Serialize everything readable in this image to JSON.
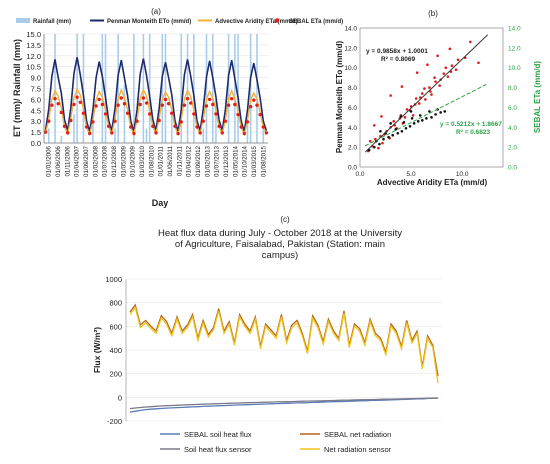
{
  "chart_data": [
    {
      "panel": "(a)",
      "type": "line",
      "legend": [
        "Rainfall (mm)",
        "Penman Monteith ETo (mm/d)",
        "Advective Aridity ETa (mm/d)",
        "SEBAL ETa (mm/d)"
      ],
      "xlabel": "Day",
      "ylabel": "ET (mm)/ Rainfall (mm)",
      "ylim": [
        0,
        15
      ],
      "yticks": [
        "0.0",
        "1.5",
        "3.0",
        "4.5",
        "6.0",
        "7.5",
        "9.0",
        "10.5",
        "12.0",
        "13.5",
        "15.0"
      ],
      "xticks": [
        "01/01/2006",
        "01/06/2006",
        "01/11/2006",
        "01/04/2007",
        "01/09/2007",
        "01/02/2008",
        "01/07/2008",
        "01/12/2008",
        "01/05/2009",
        "01/10/2009",
        "01/03/2010",
        "01/08/2010",
        "01/01/2011",
        "01/06/2011",
        "01/11/2011",
        "01/04/2012",
        "01/09/2012",
        "01/02/2013",
        "01/07/2013",
        "01/12/2013",
        "01/05/2014",
        "01/10/2014",
        "01/03/2015",
        "01/08/2015"
      ],
      "series": [
        {
          "name": "Penman Monteith ETo (mm/d)",
          "color": "#1f2a6b",
          "values": [
            1.8,
            4.6,
            9.2,
            11.5,
            9.0,
            6.8,
            3.2,
            1.7,
            4.8,
            9.6,
            11.8,
            9.4,
            6.6,
            3.0,
            1.6,
            4.5,
            9.0,
            11.2,
            9.1,
            6.3,
            3.1,
            1.7,
            4.7,
            9.3,
            11.4,
            8.9,
            6.5,
            3.0,
            1.6,
            4.6,
            9.5,
            11.6,
            9.3,
            6.4,
            3.2,
            1.7,
            4.8,
            9.2,
            11.1,
            9.0,
            6.6,
            3.1,
            1.6,
            4.5,
            9.4,
            11.5,
            9.2,
            6.5,
            3.0,
            1.7,
            4.7,
            9.1,
            11.3,
            9.0,
            6.4,
            3.1,
            1.7,
            4.6,
            9.3,
            11.4,
            8.8,
            6.3,
            3.0,
            1.6,
            4.5,
            9.0,
            11.0,
            8.7,
            6.2,
            3.0,
            1.7
          ]
        },
        {
          "name": "Advective Aridity ETa (mm/d)",
          "color": "#f2b13a",
          "values": [
            1.4,
            3.2,
            6.0,
            7.2,
            6.4,
            4.8,
            2.2,
            1.3,
            3.4,
            6.2,
            7.4,
            6.6,
            4.6,
            2.1,
            1.2,
            3.1,
            5.9,
            7.1,
            6.3,
            4.5,
            2.2,
            1.3,
            3.3,
            6.1,
            7.3,
            6.2,
            4.6,
            2.1,
            1.2,
            3.2,
            6.2,
            7.3,
            6.5,
            4.5,
            2.2,
            1.3,
            3.4,
            6.0,
            7.0,
            6.3,
            4.6,
            2.2,
            1.2,
            3.1,
            6.1,
            7.2,
            6.4,
            4.5,
            2.1,
            1.3,
            3.3,
            6.0,
            7.1,
            6.2,
            4.5,
            2.2,
            1.3,
            3.2,
            6.1,
            7.2,
            6.1,
            4.4,
            2.1,
            1.2,
            3.1,
            5.9,
            6.9,
            6.0,
            4.3,
            2.1,
            1.3
          ]
        },
        {
          "name": "SEBAL ETa (mm/d)",
          "color": "#e0201b",
          "values": [
            1.5,
            3.0,
            5.2,
            6.1,
            5.4,
            4.2,
            2.3,
            1.4,
            3.1,
            5.3,
            6.3,
            5.6,
            4.1,
            2.2,
            1.3,
            2.9,
            5.1,
            6.0,
            5.3,
            4.0,
            2.3,
            1.4,
            3.0,
            5.2,
            6.2,
            5.4,
            4.1,
            2.2,
            1.3,
            3.0,
            5.3,
            6.2,
            5.5,
            4.0,
            2.3,
            1.4,
            3.1,
            5.2,
            6.0,
            5.4,
            4.1,
            2.3,
            1.3,
            2.9,
            5.2,
            6.1,
            5.5,
            4.0,
            2.2,
            1.4,
            3.0,
            5.1,
            6.0,
            5.3,
            4.0,
            2.3,
            1.4,
            3.0,
            5.2,
            6.1,
            5.3,
            3.9,
            2.2,
            1.3,
            2.9,
            5.0,
            5.9,
            5.2,
            3.9,
            2.2,
            1.4
          ]
        },
        {
          "name": "Rainfall (mm)",
          "color": "#a9cce9",
          "values": [
            0,
            2,
            0,
            15,
            0,
            1,
            0,
            0,
            0,
            4,
            15,
            0,
            15,
            0,
            0,
            3,
            0,
            0,
            15,
            15,
            0,
            0,
            2,
            15,
            0,
            8,
            0,
            0,
            15,
            0,
            0,
            15,
            2,
            15,
            0,
            0,
            0,
            15,
            15,
            0,
            4,
            0,
            0,
            15,
            0,
            15,
            0,
            15,
            0,
            0,
            2,
            15,
            0,
            15,
            6,
            0,
            0,
            0,
            15,
            0,
            15,
            15,
            0,
            0,
            3,
            15,
            0,
            15,
            0,
            2,
            0
          ]
        }
      ]
    },
    {
      "panel": "(b)",
      "type": "scatter",
      "xlabel": "Advective Aridity ETa (mm/d)",
      "ylabel": "Penman Monteith ETo (mm/d)",
      "y2label": "SEBAL ETa (mm/d)",
      "xlim": [
        0,
        14
      ],
      "ylim": [
        0,
        14
      ],
      "xticks": [
        "0.0",
        "5.0",
        "10.0"
      ],
      "yticks": [
        "0.0",
        "2.0",
        "4.0",
        "6.0",
        "8.0",
        "10.0",
        "12.0",
        "14.0"
      ],
      "y2ticks": [
        "0.0",
        "2.0",
        "4.0",
        "6.0",
        "8.0",
        "10.0",
        "12.0",
        "14.0"
      ],
      "equations": {
        "primary": "y = 0.9858x + 1.0001",
        "primary_r2": "R² = 0.8069",
        "secondary": "y = 0.5212x + 1.8667",
        "secondary_r2": "R² = 0.6823"
      },
      "fits": [
        {
          "slope": 0.9858,
          "intercept": 1.0001,
          "color": "#333333",
          "dash": false
        },
        {
          "slope": 0.5212,
          "intercept": 1.8667,
          "color": "#2ca44a",
          "dash": true
        }
      ],
      "series": [
        {
          "color": "#d91c1c",
          "points": [
            [
              0.8,
              1.6
            ],
            [
              1.2,
              2.1
            ],
            [
              1.5,
              2.8
            ],
            [
              2.0,
              3.1
            ],
            [
              2.2,
              2.4
            ],
            [
              2.6,
              3.6
            ],
            [
              3.0,
              4.0
            ],
            [
              3.3,
              4.6
            ],
            [
              3.6,
              3.9
            ],
            [
              4.0,
              5.2
            ],
            [
              4.2,
              4.4
            ],
            [
              4.6,
              5.8
            ],
            [
              5.0,
              6.1
            ],
            [
              5.2,
              5.2
            ],
            [
              5.5,
              6.9
            ],
            [
              5.8,
              6.4
            ],
            [
              6.1,
              7.4
            ],
            [
              6.4,
              6.8
            ],
            [
              6.8,
              8.0
            ],
            [
              7.0,
              7.3
            ],
            [
              7.4,
              8.6
            ],
            [
              7.8,
              8.2
            ],
            [
              8.2,
              9.4
            ],
            [
              8.6,
              9.1
            ],
            [
              9.0,
              10.2
            ],
            [
              9.4,
              9.8
            ],
            [
              1.0,
              2.6
            ],
            [
              1.8,
              1.9
            ],
            [
              2.4,
              3.3
            ],
            [
              2.9,
              2.9
            ],
            [
              3.4,
              4.2
            ],
            [
              3.9,
              4.9
            ],
            [
              4.4,
              5.0
            ],
            [
              4.9,
              5.7
            ],
            [
              5.4,
              6.3
            ],
            [
              5.9,
              7.0
            ],
            [
              6.3,
              7.9
            ],
            [
              6.9,
              7.6
            ],
            [
              7.3,
              9.0
            ],
            [
              7.9,
              8.8
            ],
            [
              8.4,
              10.0
            ],
            [
              8.9,
              9.6
            ],
            [
              9.6,
              10.8
            ],
            [
              10.3,
              11.0
            ],
            [
              10.8,
              12.6
            ],
            [
              11.6,
              10.5
            ],
            [
              3.0,
              7.2
            ],
            [
              4.1,
              8.1
            ],
            [
              5.6,
              9.5
            ],
            [
              6.6,
              10.3
            ],
            [
              2.1,
              5.1
            ],
            [
              1.4,
              4.2
            ],
            [
              7.6,
              11.2
            ],
            [
              8.8,
              11.9
            ]
          ]
        },
        {
          "color": "#111111",
          "points": [
            [
              0.9,
              1.7
            ],
            [
              1.4,
              2.0
            ],
            [
              1.9,
              2.3
            ],
            [
              2.3,
              2.8
            ],
            [
              2.8,
              3.0
            ],
            [
              3.2,
              3.2
            ],
            [
              3.7,
              3.4
            ],
            [
              4.1,
              3.6
            ],
            [
              4.5,
              3.9
            ],
            [
              4.9,
              4.1
            ],
            [
              5.3,
              4.4
            ],
            [
              5.7,
              4.6
            ],
            [
              6.1,
              4.7
            ],
            [
              6.5,
              4.9
            ],
            [
              7.0,
              5.0
            ],
            [
              7.4,
              5.3
            ],
            [
              7.9,
              5.5
            ],
            [
              8.3,
              5.6
            ],
            [
              1.6,
              2.6
            ],
            [
              2.5,
              3.4
            ],
            [
              3.5,
              3.8
            ],
            [
              4.3,
              4.5
            ],
            [
              5.1,
              4.9
            ],
            [
              5.9,
              5.2
            ],
            [
              6.8,
              5.6
            ],
            [
              7.6,
              5.8
            ],
            [
              2.0,
              3.6
            ],
            [
              3.0,
              4.4
            ],
            [
              4.0,
              5.1
            ],
            [
              5.0,
              5.6
            ]
          ]
        }
      ]
    },
    {
      "panel": "(c)",
      "type": "line",
      "title": "Heat flux data during July - October 2018 at the University of Agriculture, Faisalabad, Pakistan (Station: main campus)",
      "ylabel": "Flux (W/m²)",
      "ylim": [
        -200,
        1000
      ],
      "yticks": [
        "-200",
        "0",
        "200",
        "400",
        "600",
        "800",
        "1000"
      ],
      "series": [
        {
          "name": "SEBAL soil heat flux",
          "color": "#5b7db8",
          "values": [
            -125,
            -118,
            -110,
            -104,
            -100,
            -97,
            -94,
            -91,
            -89,
            -87,
            -85,
            -83,
            -81,
            -79,
            -77,
            -75,
            -73,
            -71,
            -70,
            -68,
            -66,
            -64,
            -63,
            -61,
            -60,
            -58,
            -56,
            -55,
            -53,
            -52,
            -50,
            -49,
            -47,
            -46,
            -45,
            -43,
            -42,
            -40,
            -39,
            -37,
            -36,
            -35,
            -33,
            -32,
            -30,
            -29,
            -27,
            -26,
            -24,
            -23,
            -21,
            -20,
            -18,
            -17,
            -15,
            -13,
            -12,
            -10,
            -8,
            -6
          ]
        },
        {
          "name": "SEBAL net radiation",
          "color": "#b5651d",
          "values": [
            720,
            780,
            610,
            650,
            600,
            560,
            690,
            640,
            540,
            680,
            560,
            610,
            700,
            500,
            650,
            530,
            590,
            750,
            560,
            640,
            460,
            700,
            620,
            560,
            680,
            430,
            620,
            570,
            520,
            700,
            480,
            610,
            650,
            540,
            390,
            690,
            610,
            470,
            660,
            560,
            500,
            730,
            440,
            620,
            580,
            460,
            660,
            540,
            500,
            380,
            620,
            560,
            430,
            650,
            480,
            560,
            260,
            520,
            440,
            180
          ]
        },
        {
          "name": "Soil heat flux sensor",
          "color": "#7a7a8c",
          "values": [
            -95,
            -90,
            -86,
            -82,
            -79,
            -76,
            -73,
            -71,
            -69,
            -67,
            -65,
            -63,
            -61,
            -60,
            -58,
            -56,
            -55,
            -53,
            -52,
            -50,
            -49,
            -48,
            -46,
            -45,
            -44,
            -43,
            -41,
            -40,
            -39,
            -38,
            -37,
            -36,
            -34,
            -33,
            -32,
            -31,
            -30,
            -29,
            -28,
            -27,
            -25,
            -24,
            -23,
            -22,
            -21,
            -20,
            -19,
            -18,
            -17,
            -16,
            -15,
            -14,
            -13,
            -12,
            -11,
            -10,
            -9,
            -8,
            -7,
            -6
          ]
        },
        {
          "name": "Net radiation sensor",
          "color": "#f0c419",
          "values": [
            700,
            760,
            590,
            630,
            580,
            540,
            670,
            620,
            520,
            660,
            540,
            590,
            680,
            480,
            630,
            510,
            570,
            730,
            540,
            620,
            440,
            680,
            600,
            540,
            660,
            410,
            600,
            550,
            500,
            680,
            460,
            590,
            630,
            520,
            370,
            670,
            590,
            450,
            640,
            540,
            480,
            710,
            420,
            600,
            560,
            440,
            640,
            520,
            480,
            360,
            600,
            540,
            410,
            630,
            460,
            540,
            240,
            500,
            420,
            120
          ]
        }
      ]
    }
  ]
}
